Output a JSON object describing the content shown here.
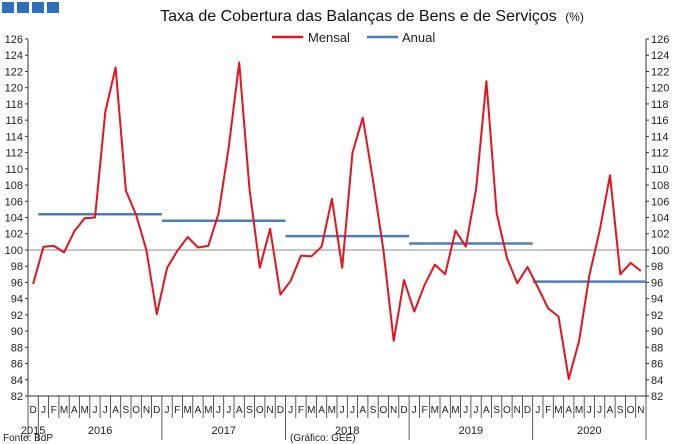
{
  "header": {
    "squares_color": "#2e6fba"
  },
  "chart_data": {
    "type": "line",
    "title": "Taxa de Cobertura das Balanças de Bens e de Serviços",
    "title_unit": "(%)",
    "ylim": [
      82,
      126
    ],
    "yticks": [
      82,
      84,
      86,
      88,
      90,
      92,
      94,
      96,
      98,
      100,
      102,
      104,
      106,
      108,
      110,
      112,
      114,
      116,
      118,
      120,
      122,
      124,
      126
    ],
    "reference_line": 100,
    "legend": {
      "placement": "top-center"
    },
    "months": [
      "D",
      "J",
      "F",
      "M",
      "A",
      "M",
      "J",
      "J",
      "A",
      "S",
      "O",
      "N",
      "D",
      "J",
      "F",
      "M",
      "A",
      "M",
      "J",
      "J",
      "A",
      "S",
      "O",
      "N",
      "D",
      "J",
      "F",
      "M",
      "A",
      "M",
      "J",
      "J",
      "A",
      "S",
      "O",
      "N",
      "D",
      "J",
      "F",
      "M",
      "A",
      "M",
      "J",
      "J",
      "A",
      "S",
      "O",
      "N",
      "D",
      "J",
      "F",
      "M",
      "A",
      "M",
      "J",
      "J",
      "A",
      "S",
      "O",
      "N"
    ],
    "years": [
      {
        "label": "2015",
        "start": 0,
        "end": 0
      },
      {
        "label": "2016",
        "start": 1,
        "end": 12
      },
      {
        "label": "2017",
        "start": 13,
        "end": 24
      },
      {
        "label": "2018",
        "start": 25,
        "end": 36
      },
      {
        "label": "2019",
        "start": 37,
        "end": 48
      },
      {
        "label": "2020",
        "start": 49,
        "end": 59
      }
    ],
    "series": [
      {
        "name": "Mensal",
        "color": "#e8121c",
        "values": [
          95.8,
          100.4,
          100.5,
          99.7,
          102.3,
          103.9,
          104.0,
          117.0,
          122.5,
          107.3,
          104.3,
          100.0,
          92.1,
          97.8,
          99.9,
          101.6,
          100.3,
          100.5,
          104.5,
          112.8,
          123.1,
          107.5,
          97.8,
          102.6,
          94.5,
          96.2,
          99.3,
          99.2,
          100.4,
          106.3,
          97.8,
          112.0,
          116.3,
          108.5,
          100.0,
          88.8,
          96.3,
          92.4,
          95.7,
          98.2,
          97.0,
          102.4,
          100.4,
          107.5,
          120.8,
          104.5,
          99.0,
          95.9,
          97.9,
          95.4,
          92.8,
          91.8,
          84.1,
          88.8,
          96.9,
          102.4,
          109.2,
          97.0,
          98.4,
          97.4
        ]
      },
      {
        "name": "Anual",
        "color": "#4a7ebb",
        "segments": [
          {
            "from": 1,
            "to": 12,
            "value": 104.4
          },
          {
            "from": 13,
            "to": 24,
            "value": 103.6
          },
          {
            "from": 25,
            "to": 36,
            "value": 101.7
          },
          {
            "from": 37,
            "to": 48,
            "value": 100.8
          },
          {
            "from": 49,
            "to": 59,
            "value": 96.1
          }
        ]
      }
    ]
  },
  "footer": {
    "source": "Fonte: BdP",
    "credit": "(Gráfico: GEE)"
  }
}
